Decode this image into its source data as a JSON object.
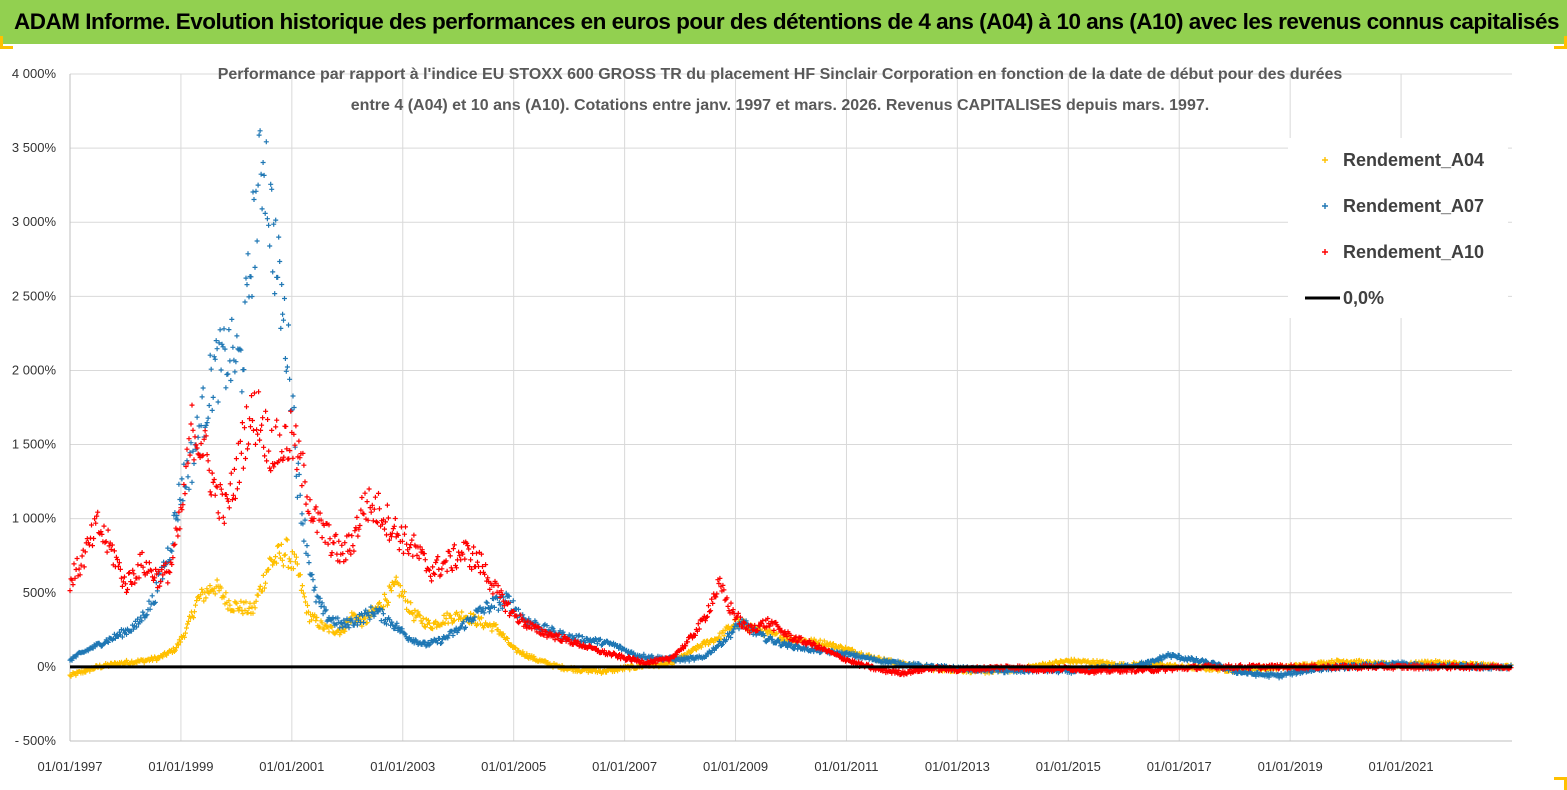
{
  "banner": {
    "title": "ADAM Informe. Evolution historique des performances en euros pour des détentions de 4 ans (A04) à 10 ans (A10) avec les revenus connus capitalisés"
  },
  "colors": {
    "banner_bg": "#92d050",
    "A04": "#ffc000",
    "A07": "#1f77b4",
    "A10": "#ff0000",
    "zero": "#000000",
    "grid": "#d9d9d9"
  },
  "chart_data": {
    "type": "scatter",
    "title_lines": [
      "Performance par rapport à l'indice EU STOXX 600 GROSS TR  du placement HF Sinclair Corporation en fonction de la date de début pour des durées",
      "entre 4 (A04) et 10 ans (A10). Cotations entre janv. 1997 et mars. 2026. Revenus CAPITALISES depuis mars. 1997."
    ],
    "xlabel": "",
    "ylabel": "",
    "x_range": [
      "01/01/1997",
      "01/01/2023"
    ],
    "ylim": [
      -500,
      4000
    ],
    "y_ticks": [
      -500,
      0,
      500,
      1000,
      1500,
      2000,
      2500,
      3000,
      3500,
      4000
    ],
    "y_tick_labels": [
      "- 500%",
      "0%",
      "500%",
      "1 000%",
      "1 500%",
      "2 000%",
      "2 500%",
      "3 000%",
      "3 500%",
      "4 000%"
    ],
    "x_tick_labels": [
      "01/01/1997",
      "01/01/1999",
      "01/01/2001",
      "01/01/2003",
      "01/01/2005",
      "01/01/2007",
      "01/01/2009",
      "01/01/2011",
      "01/01/2013",
      "01/01/2015",
      "01/01/2017",
      "01/01/2019",
      "01/01/2021"
    ],
    "grid": true,
    "legend_position": "top-right",
    "series": [
      {
        "name": "Rendement_A04",
        "color": "#ffc000",
        "x": [
          1997.0,
          1997.5,
          1998.0,
          1998.3,
          1998.6,
          1998.9,
          1999.1,
          1999.3,
          1999.6,
          1999.9,
          2000.1,
          2000.3,
          2000.6,
          2000.9,
          2001.1,
          2001.3,
          2001.6,
          2001.9,
          2002.1,
          2002.3,
          2002.6,
          2002.9,
          2003.2,
          2003.5,
          2003.8,
          2004.1,
          2004.4,
          2004.7,
          2005.0,
          2005.4,
          2005.8,
          2006.2,
          2006.6,
          2007.0,
          2007.4,
          2007.8,
          2008.1,
          2008.4,
          2008.7,
          2009.0,
          2009.4,
          2009.8,
          2010.2,
          2010.6,
          2011.0,
          2011.5,
          2012.0,
          2012.5,
          2013.0,
          2013.5,
          2014.0,
          2014.5,
          2015.0,
          2015.5,
          2016.0,
          2016.5,
          2017.0,
          2017.5,
          2018.0,
          2018.5,
          2019.0,
          2019.5,
          2020.0,
          2020.5,
          2021.0,
          2021.5,
          2022.0,
          2022.5,
          2023.0
        ],
        "y": [
          -60,
          0,
          30,
          40,
          60,
          120,
          250,
          450,
          550,
          420,
          400,
          380,
          700,
          780,
          650,
          350,
          260,
          240,
          350,
          300,
          420,
          550,
          350,
          280,
          330,
          350,
          300,
          260,
          120,
          50,
          0,
          -20,
          -30,
          -10,
          10,
          20,
          80,
          150,
          200,
          300,
          250,
          200,
          180,
          160,
          120,
          60,
          20,
          -10,
          -20,
          -30,
          -20,
          10,
          40,
          30,
          10,
          20,
          0,
          -10,
          -20,
          -10,
          0,
          20,
          40,
          20,
          10,
          30,
          20,
          10,
          0
        ]
      },
      {
        "name": "Rendement_A07",
        "color": "#1f77b4",
        "x": [
          1997.0,
          1997.4,
          1997.8,
          1998.2,
          1998.5,
          1998.8,
          1999.0,
          1999.2,
          1999.4,
          1999.6,
          1999.9,
          2000.1,
          2000.3,
          2000.5,
          2000.6,
          2000.8,
          2000.9,
          2001.0,
          2001.1,
          2001.2,
          2001.4,
          2001.6,
          2001.9,
          2002.2,
          2002.5,
          2002.8,
          2003.1,
          2003.4,
          2003.7,
          2004.0,
          2004.3,
          2004.6,
          2004.9,
          2005.2,
          2005.6,
          2006.0,
          2006.4,
          2006.8,
          2007.2,
          2007.6,
          2008.0,
          2008.4,
          2008.8,
          2009.1,
          2009.5,
          2009.9,
          2010.3,
          2010.7,
          2011.1,
          2011.5,
          2012.0,
          2012.5,
          2013.0,
          2013.5,
          2014.0,
          2014.5,
          2015.0,
          2015.5,
          2016.0,
          2016.5,
          2016.8,
          2017.2,
          2017.6,
          2018.0,
          2018.4,
          2018.8,
          2019.2,
          2019.6,
          2020.0,
          2020.5,
          2021.0,
          2021.5,
          2022.0,
          2022.5,
          2023.0
        ],
        "y": [
          50,
          130,
          200,
          280,
          450,
          800,
          1200,
          1400,
          1700,
          2000,
          2100,
          2050,
          2900,
          3500,
          3100,
          2500,
          2200,
          1900,
          1300,
          1000,
          500,
          350,
          280,
          320,
          380,
          300,
          200,
          150,
          180,
          250,
          350,
          420,
          450,
          320,
          250,
          200,
          180,
          150,
          80,
          60,
          50,
          60,
          180,
          300,
          200,
          150,
          120,
          100,
          80,
          50,
          20,
          0,
          -10,
          -20,
          -30,
          -20,
          -30,
          -10,
          0,
          30,
          80,
          50,
          20,
          -30,
          -50,
          -60,
          -30,
          -10,
          0,
          10,
          20,
          0,
          10,
          0,
          0
        ]
      },
      {
        "name": "Rendement_A10",
        "color": "#ff0000",
        "x": [
          1997.0,
          1997.2,
          1997.5,
          1997.8,
          1998.0,
          1998.3,
          1998.6,
          1998.8,
          1999.0,
          1999.2,
          1999.4,
          1999.6,
          1999.8,
          2000.0,
          2000.2,
          2000.4,
          2000.6,
          2000.8,
          2001.0,
          2001.2,
          2001.4,
          2001.6,
          2001.9,
          2002.1,
          2002.3,
          2002.6,
          2002.9,
          2003.2,
          2003.5,
          2003.8,
          2004.1,
          2004.4,
          2004.7,
          2005.0,
          2005.4,
          2005.8,
          2006.2,
          2006.6,
          2007.0,
          2007.4,
          2007.8,
          2008.1,
          2008.4,
          2008.7,
          2008.9,
          2009.2,
          2009.6,
          2010.0,
          2010.4,
          2010.8,
          2011.2,
          2011.6,
          2012.0,
          2012.5,
          2013.0,
          2013.5,
          2014.0,
          2014.5,
          2015.0,
          2015.5,
          2016.0,
          2016.5,
          2017.0,
          2017.5,
          2018.0,
          2018.5,
          2019.0,
          2019.5,
          2020.0,
          2020.5,
          2021.0,
          2021.5,
          2022.0,
          2022.5,
          2023.0
        ],
        "y": [
          580,
          700,
          950,
          750,
          550,
          700,
          600,
          650,
          1000,
          1600,
          1500,
          1200,
          1050,
          1300,
          1650,
          1700,
          1500,
          1480,
          1550,
          1300,
          1000,
          900,
          750,
          850,
          1100,
          1050,
          900,
          800,
          650,
          700,
          780,
          700,
          500,
          350,
          250,
          200,
          150,
          100,
          60,
          30,
          50,
          150,
          300,
          550,
          400,
          250,
          300,
          200,
          150,
          80,
          20,
          -20,
          -40,
          -10,
          -20,
          -10,
          0,
          -20,
          -10,
          -30,
          -20,
          -20,
          -10,
          0,
          0,
          0,
          0,
          0,
          0,
          0,
          0,
          0,
          0,
          0,
          0
        ]
      }
    ],
    "legend": [
      {
        "label": "Rendement_A04",
        "marker": "+"
      },
      {
        "label": "Rendement_A07",
        "marker": "+"
      },
      {
        "label": "Rendement_A10",
        "marker": "+"
      },
      {
        "label": "0,0%",
        "marker": "line"
      }
    ]
  }
}
